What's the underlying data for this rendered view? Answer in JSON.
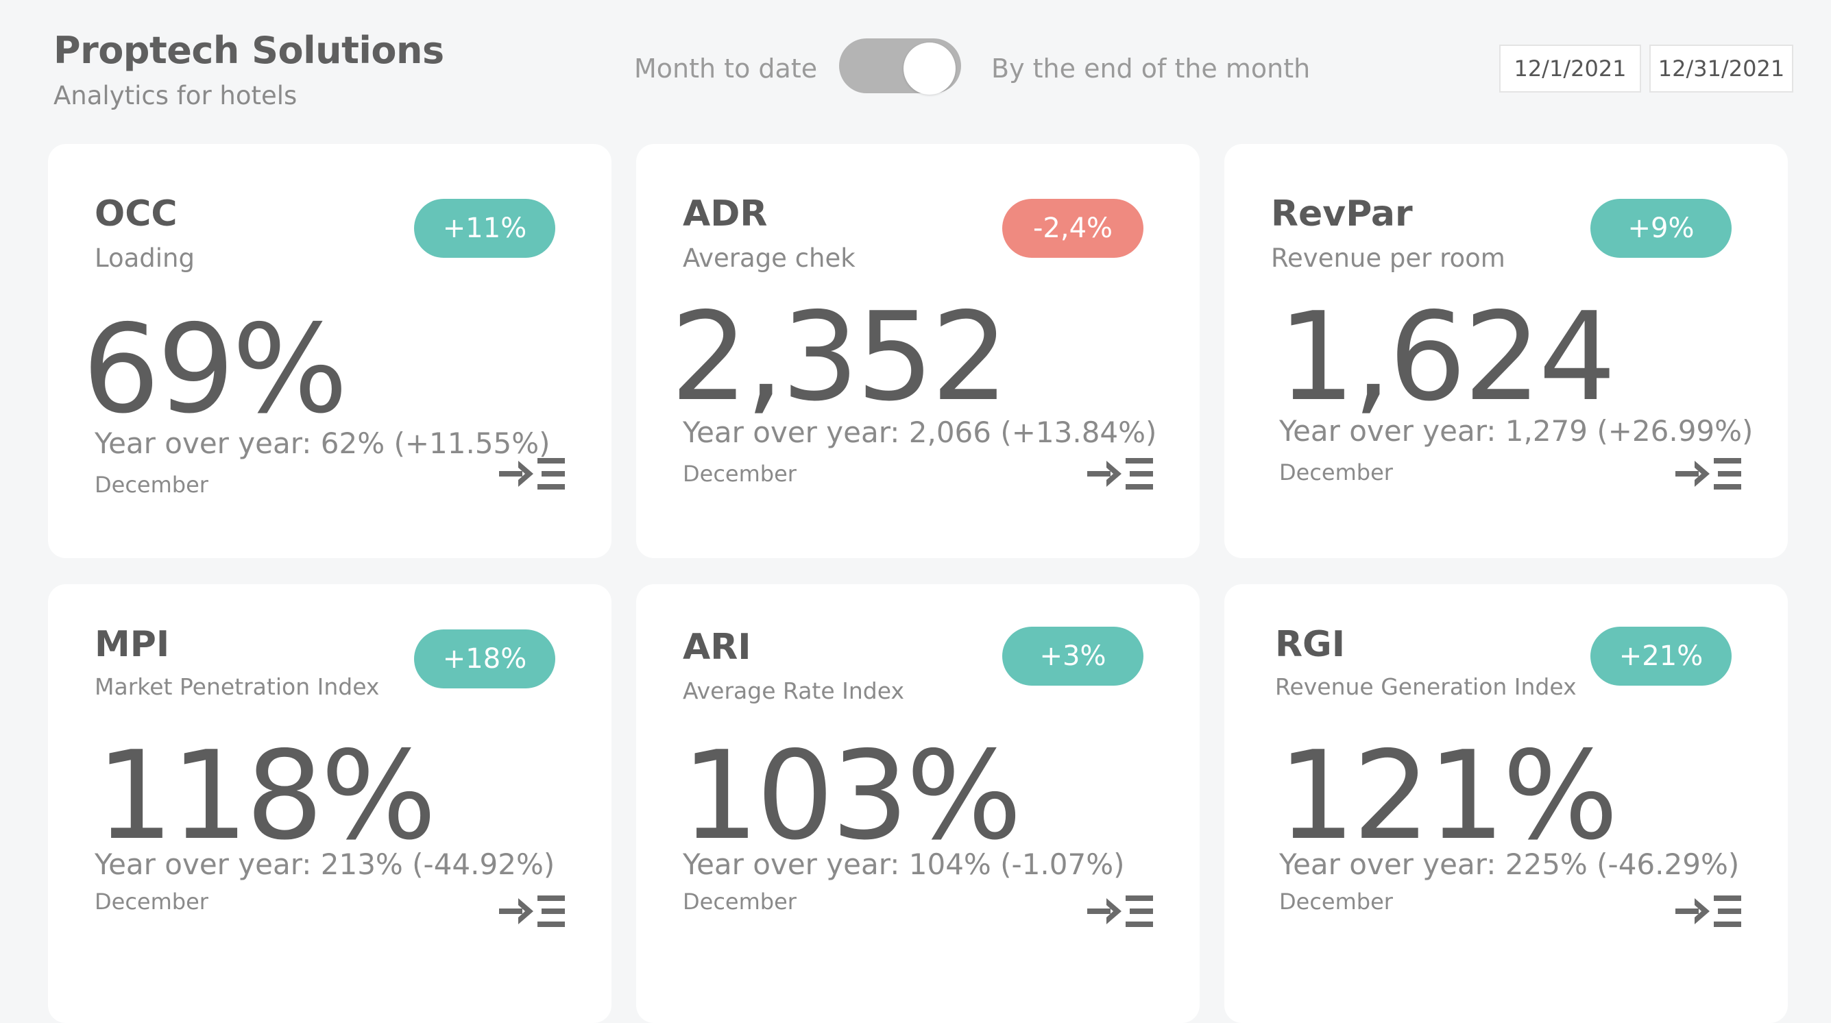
{
  "header": {
    "title": "Proptech Solutions",
    "subtitle": "Analytics for hotels"
  },
  "toggle": {
    "left_label": "Month to date",
    "right_label": "By the end of the month",
    "state": "By the end of the month"
  },
  "dates": {
    "start": "12/1/2021",
    "end": "12/31/2021"
  },
  "colors": {
    "positive_badge": "#66c4b8",
    "negative_badge": "#ef8a80"
  },
  "cards": [
    {
      "title": "OCC",
      "subtitle": "Loading",
      "badge": "+11%",
      "badge_type": "positive",
      "value": "69%",
      "yoy": "Year over year: 62% (+11.55%)",
      "period": "December",
      "icon": "drill-through-icon"
    },
    {
      "title": "ADR",
      "subtitle": "Average chek",
      "badge": "-2,4%",
      "badge_type": "negative",
      "value": "2,352",
      "yoy": "Year over year: 2,066 (+13.84%)",
      "period": "December",
      "icon": "drill-through-icon"
    },
    {
      "title": "RevPar",
      "subtitle": "Revenue per room",
      "badge": "+9%",
      "badge_type": "positive",
      "value": "1,624",
      "yoy": "Year over year: 1,279 (+26.99%)",
      "period": "December",
      "icon": "drill-through-icon"
    },
    {
      "title": "MPI",
      "subtitle": "Market Penetration Index",
      "badge": "+18%",
      "badge_type": "positive",
      "value": "118%",
      "yoy": "Year over year: 213% (-44.92%)",
      "period": "December",
      "icon": "drill-through-icon"
    },
    {
      "title": "ARI",
      "subtitle": "Average Rate Index",
      "badge": "+3%",
      "badge_type": "positive",
      "value": "103%",
      "yoy": "Year over year: 104% (-1.07%)",
      "period": "December",
      "icon": "drill-through-icon"
    },
    {
      "title": "RGI",
      "subtitle": "Revenue Generation Index",
      "badge": "+21%",
      "badge_type": "positive",
      "value": "121%",
      "yoy": "Year over year: 225% (-46.29%)",
      "period": "December",
      "icon": "drill-through-icon"
    }
  ]
}
